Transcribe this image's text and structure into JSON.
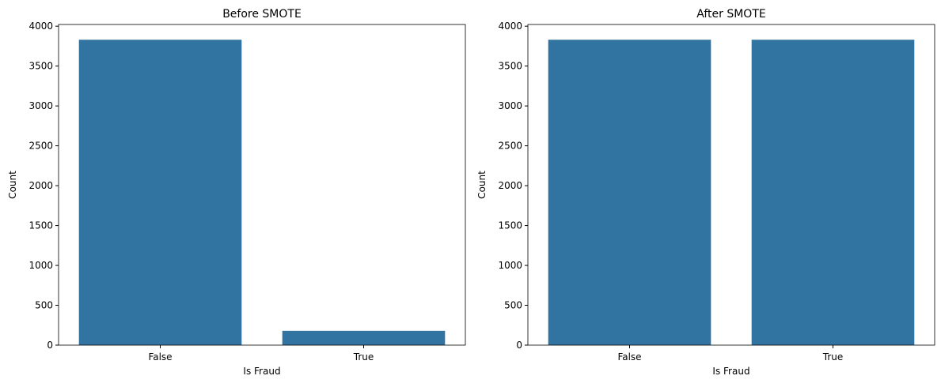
{
  "chart_data": [
    {
      "type": "bar",
      "title": "Before SMOTE",
      "x_label": "Is Fraud",
      "y_label": "Count",
      "categories": [
        "False",
        "True"
      ],
      "values": [
        3830,
        180
      ],
      "color": "#3274a1",
      "ylim": [
        0,
        4021.5
      ],
      "yticks": [
        0,
        500,
        1000,
        1500,
        2000,
        2500,
        3000,
        3500,
        4000
      ]
    },
    {
      "type": "bar",
      "title": "After SMOTE",
      "x_label": "Is Fraud",
      "y_label": "Count",
      "categories": [
        "False",
        "True"
      ],
      "values": [
        3830,
        3830
      ],
      "color": "#3274a1",
      "ylim": [
        0,
        4021.5
      ],
      "yticks": [
        0,
        500,
        1000,
        1500,
        2000,
        2500,
        3000,
        3500,
        4000
      ]
    }
  ]
}
